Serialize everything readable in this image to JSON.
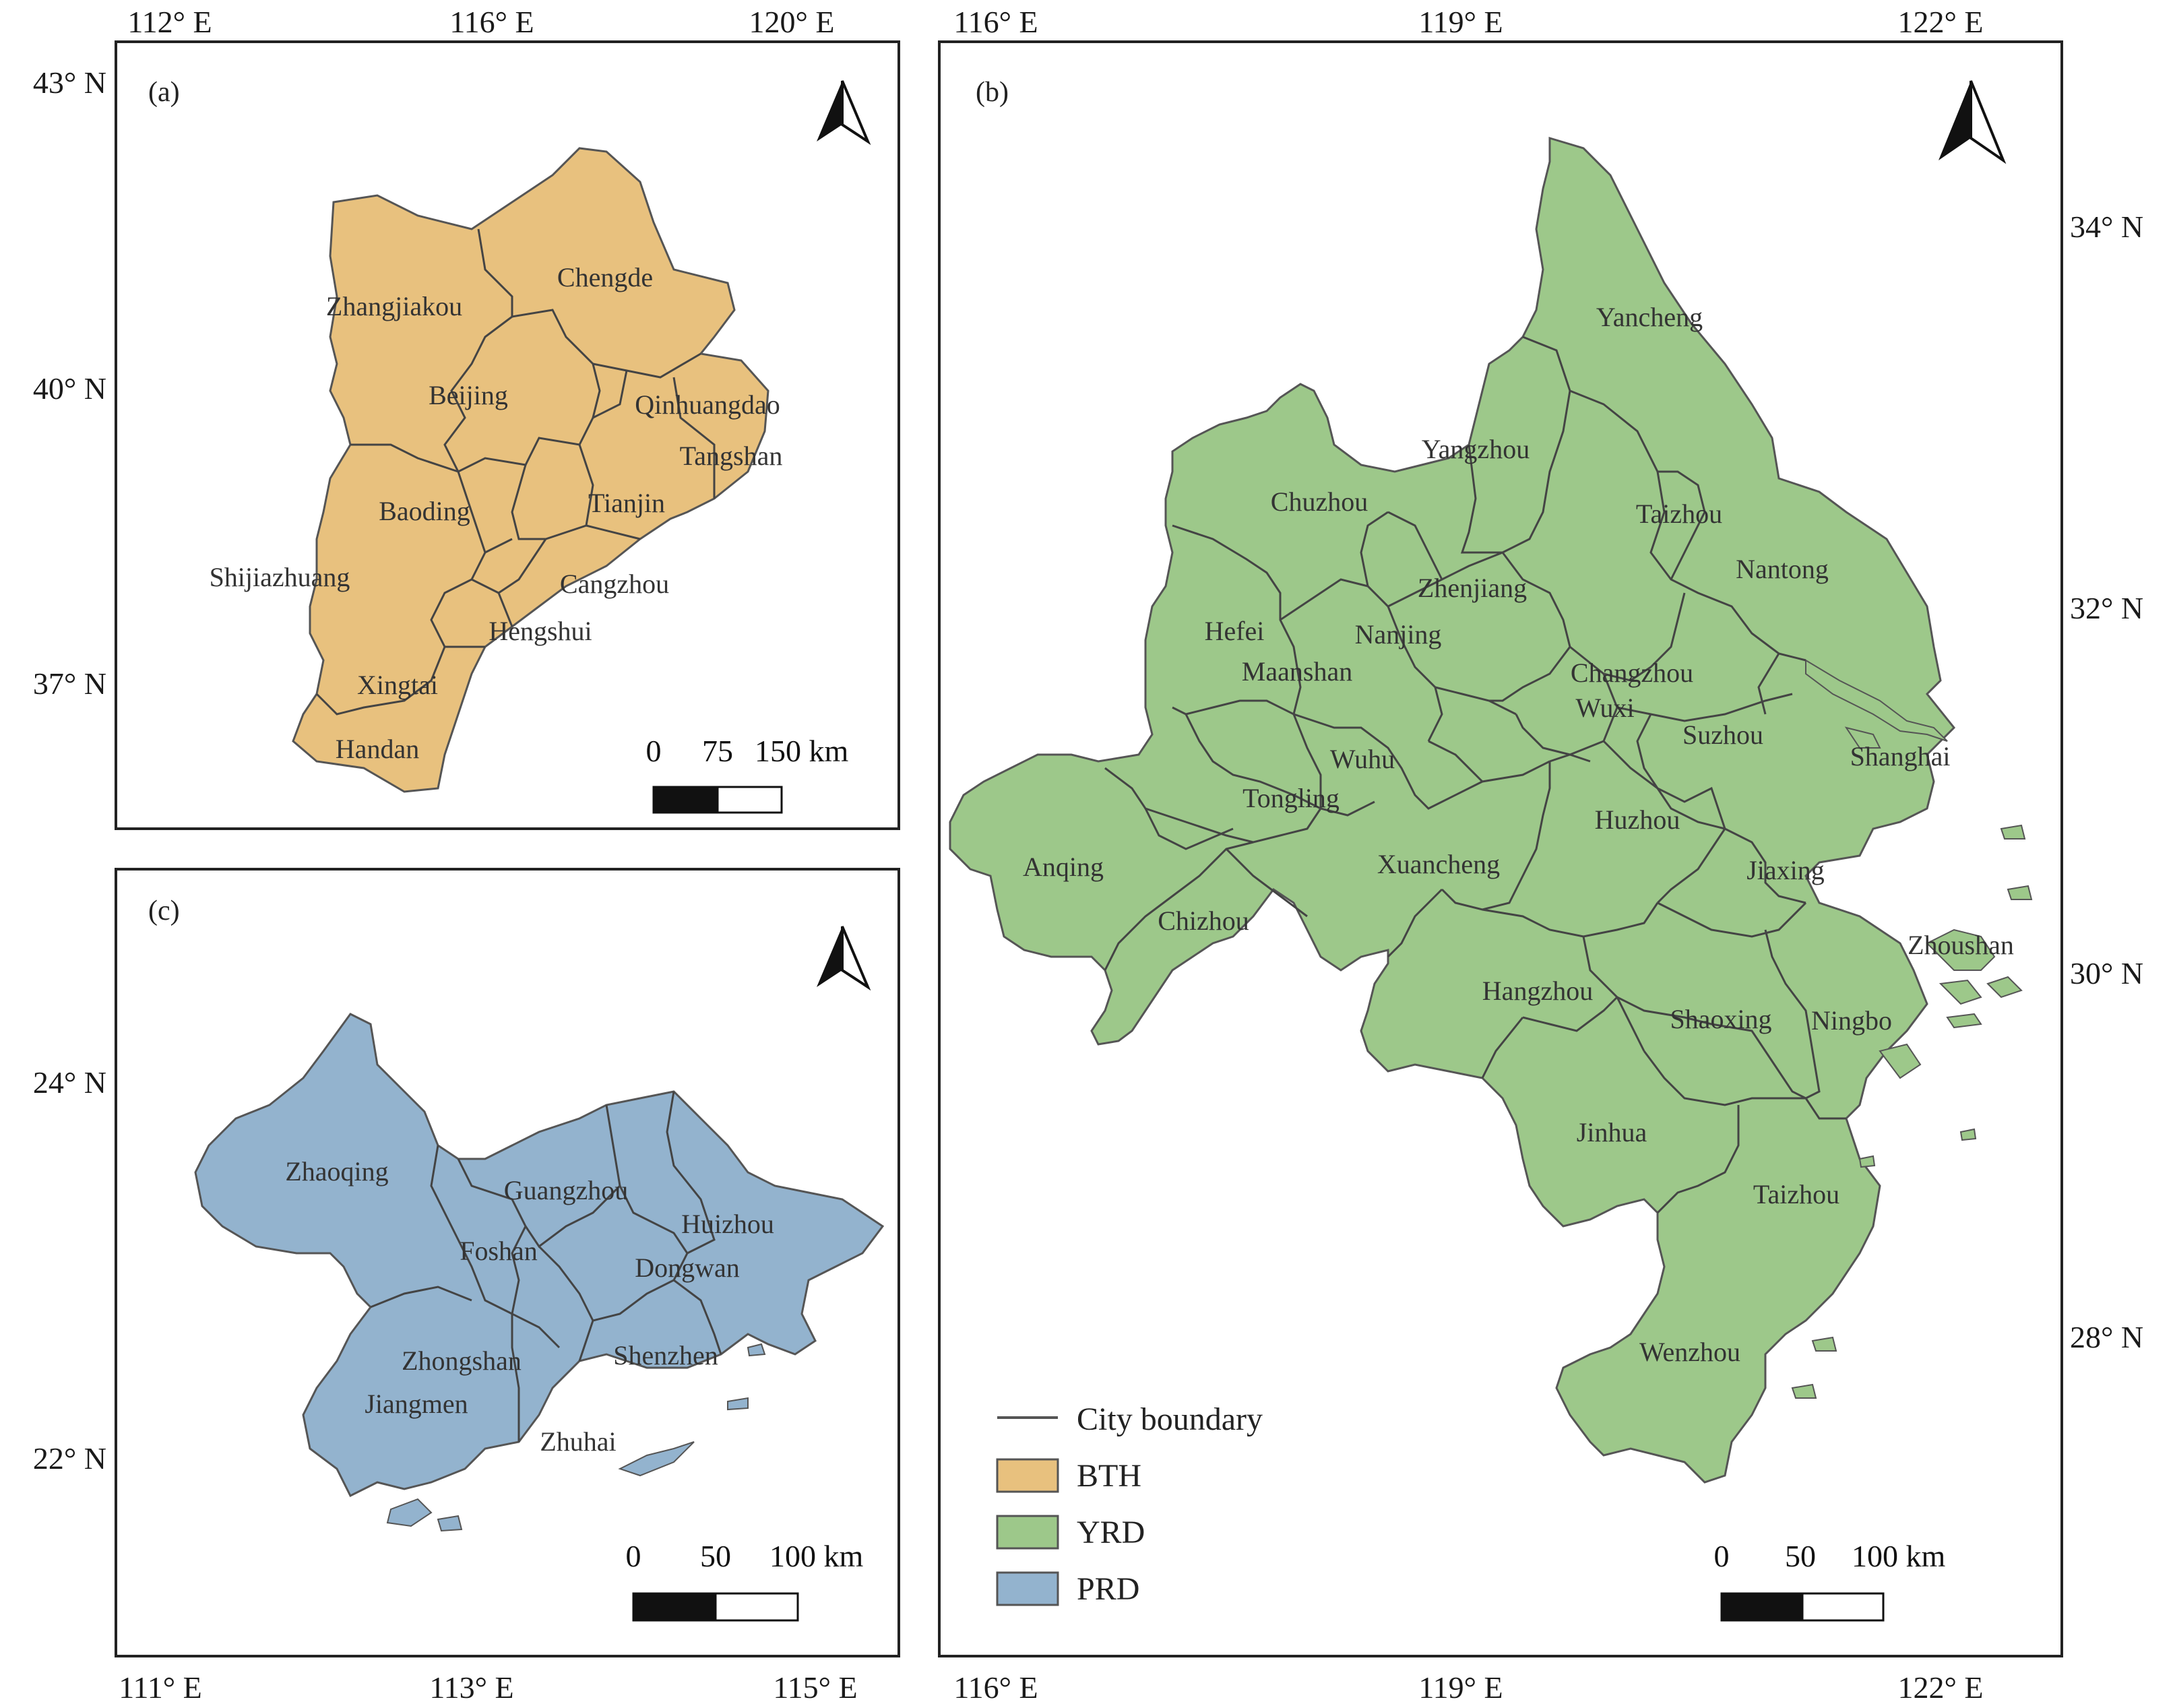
{
  "colors": {
    "BTH": "#E8C17E",
    "YRD": "#9DC88A",
    "PRD": "#93B3CE",
    "boundary": "#555555"
  },
  "panel_a": {
    "label": "(a)",
    "top_ticks": [
      "112° E",
      "116° E",
      "120° E"
    ],
    "left_ticks": [
      "43° N",
      "40° N",
      "37° N"
    ],
    "cities": [
      "Zhangjiakou",
      "Chengde",
      "Beijing",
      "Qinhuangdao",
      "Tangshan",
      "Tianjin",
      "Baoding",
      "Shijiazhuang",
      "Cangzhou",
      "Hengshui",
      "Xingtai",
      "Handan"
    ],
    "scale": {
      "zero": "0",
      "mid": "75",
      "end": "150 km"
    },
    "north_icon": "north-arrow-icon"
  },
  "panel_b": {
    "label": "(b)",
    "top_ticks": [
      "116° E",
      "119° E",
      "122° E"
    ],
    "bottom_ticks": [
      "116° E",
      "119° E",
      "122° E"
    ],
    "right_ticks": [
      "34° N",
      "32° N",
      "30° N",
      "28° N"
    ],
    "cities": [
      "Yancheng",
      "Yangzhou",
      "Chuzhou",
      "Taizhou",
      "Nantong",
      "Zhenjiang",
      "Hefei",
      "Nanjing",
      "Maanshan",
      "Changzhou",
      "Wuxi",
      "Suzhou",
      "Shanghai",
      "Wuhu",
      "Tongling",
      "Anqing",
      "Xuancheng",
      "Huzhou",
      "Jiaxing",
      "Chizhou",
      "Zhoushan",
      "Hangzhou",
      "Shaoxing",
      "Ningbo",
      "Jinhua",
      "Taizhou",
      "Wenzhou"
    ],
    "scale": {
      "zero": "0",
      "mid": "50",
      "end": "100 km"
    },
    "north_icon": "north-arrow-icon"
  },
  "panel_c": {
    "label": "(c)",
    "bottom_ticks": [
      "111° E",
      "113° E",
      "115° E"
    ],
    "left_ticks": [
      "24° N",
      "22° N"
    ],
    "cities": [
      "Zhaoqing",
      "Guangzhou",
      "Huizhou",
      "Foshan",
      "Dongwan",
      "Zhongshan",
      "Shenzhen",
      "Jiangmen",
      "Zhuhai"
    ],
    "scale": {
      "zero": "0",
      "mid": "50",
      "end": "100 km"
    },
    "north_icon": "north-arrow-icon"
  },
  "legend": {
    "boundary_label": "City boundary",
    "items": [
      {
        "name": "BTH",
        "color": "#E8C17E"
      },
      {
        "name": "YRD",
        "color": "#9DC88A"
      },
      {
        "name": "PRD",
        "color": "#93B3CE"
      }
    ]
  }
}
